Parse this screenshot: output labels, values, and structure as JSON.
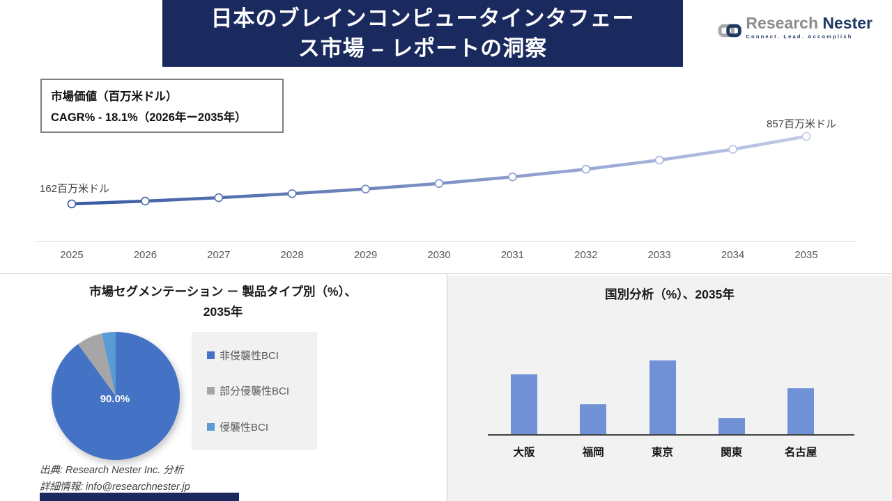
{
  "header": {
    "title_lines": [
      "日本のブレインコンピュータインタフェー",
      "ス市場 – レポートの洞察"
    ]
  },
  "logo": {
    "brand_gray": "Research",
    "brand_navy": "Nester",
    "tagline": "Connect. Lead. Accomplish"
  },
  "info_box": {
    "line1": "市場価値（百万米ドル）",
    "line2": "CAGR% - 18.1%（2026年ー2035年）"
  },
  "source": {
    "line1": "出典: Research Nester Inc. 分析",
    "line2": "詳細情報: info@researchnester.jp"
  },
  "colors": {
    "navy": "#1b2a5e",
    "line_start": "#36589f",
    "line_end": "#c2cbe9",
    "bar_blue": "#7191d6",
    "panel_gray": "#f2f2f2",
    "axis_gray": "#d9d9d9"
  },
  "chart_data": [
    {
      "type": "line",
      "title": "市場価値（百万米ドル）",
      "subtitle": "CAGR% - 18.1%（2026年ー2035年）",
      "x": [
        2025,
        2026,
        2027,
        2028,
        2029,
        2030,
        2031,
        2032,
        2033,
        2034,
        2035
      ],
      "series": [
        {
          "name": "市場価値（百万米ドル）",
          "values": [
            162,
            191,
            226,
            267,
            315,
            372,
            440,
            519,
            613,
            724,
            857
          ]
        }
      ],
      "start_label": "162百万米ドル",
      "end_label": "857百万米ドル",
      "ylim": [
        100,
        900
      ],
      "grid": false,
      "legend": "none"
    },
    {
      "type": "pie",
      "title": "市場セグメンテーション － 製品タイプ別（%）、2035年",
      "labels": [
        "非侵襲性BCI",
        "部分侵襲性BCI",
        "侵襲性BCI"
      ],
      "values": [
        90.0,
        6.5,
        3.5
      ],
      "colors": [
        "#4472c4",
        "#a6a6a6",
        "#5b9bd5"
      ],
      "data_label": "90.0%",
      "legend_position": "right"
    },
    {
      "type": "bar",
      "title": "国別分析（%）、2035年",
      "categories": [
        "大阪",
        "福岡",
        "東京",
        "関東",
        "名古屋"
      ],
      "values": [
        26,
        13,
        32,
        7,
        20
      ],
      "ylabel": "",
      "xlabel": "",
      "grid": false,
      "bar_color": "#7191d6"
    }
  ],
  "pie_section": {
    "title_line1": "市場セグメンテーション － 製品タイプ別（%）、",
    "title_line2": "2035年"
  },
  "bar_section": {
    "title": "国別分析（%）、2035年"
  }
}
